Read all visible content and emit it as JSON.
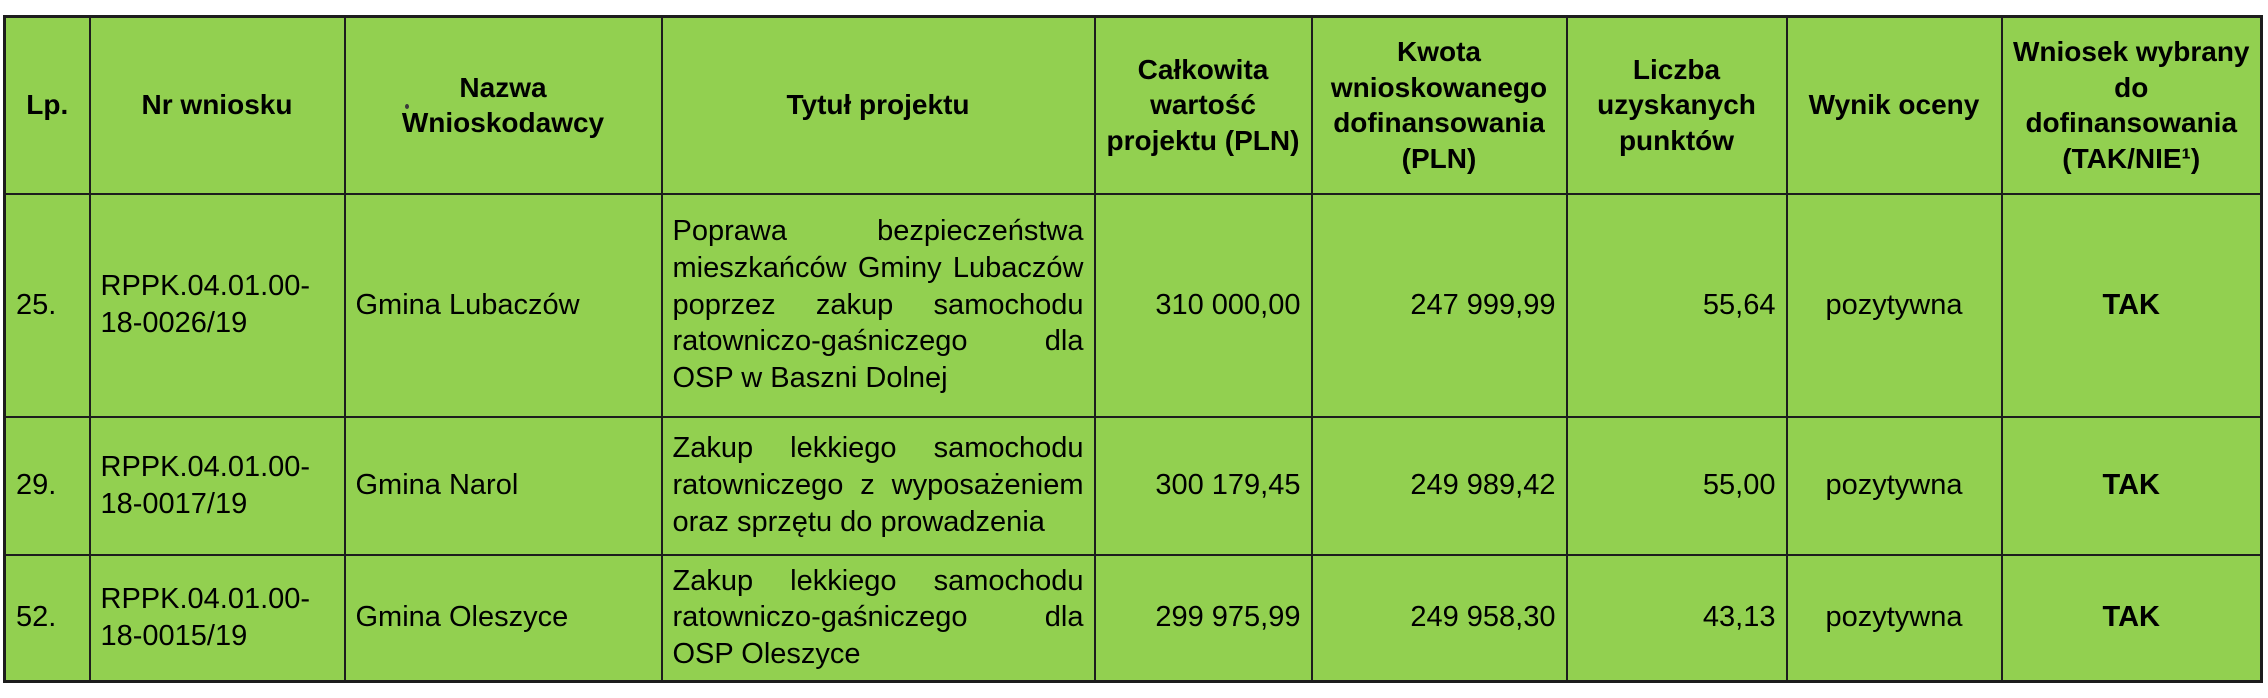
{
  "table": {
    "fill_color": "#92d050",
    "border_color": "#1d1d1d",
    "columns": [
      {
        "label": "Lp."
      },
      {
        "label": "Nr wniosku"
      },
      {
        "label": "Nazwa Wnioskodawcy"
      },
      {
        "label": "Tytuł projektu"
      },
      {
        "label": "Całkowita wartość projektu (PLN)"
      },
      {
        "label": "Kwota wnioskowanego dofinansowania (PLN)"
      },
      {
        "label": "Liczba uzyskanych punktów"
      },
      {
        "label": "Wynik oceny"
      },
      {
        "label": "Wniosek wybrany do dofinansowania (TAK/NIE¹)"
      }
    ],
    "rows": [
      {
        "lp": "25.",
        "nr": "RPPK.04.01.00-18-0026/19",
        "nazwa": "Gmina Lubaczów",
        "tytul": "Poprawa bezpieczeństwa mieszkańców Gminy Lubaczów poprzez zakup samochodu ratowniczo-gaśniczego dla OSP w Baszni Dolnej",
        "calkowita": "310 000,00",
        "kwota": "247 999,99",
        "liczba": "55,64",
        "wynik": "pozytywna",
        "wniosek": "TAK"
      },
      {
        "lp": "29.",
        "nr": "RPPK.04.01.00-18-0017/19",
        "nazwa": "Gmina Narol",
        "tytul": "Zakup lekkiego samochodu ratowniczego z wyposażeniem oraz sprzętu do prowadzenia",
        "calkowita": "300 179,45",
        "kwota": "249 989,42",
        "liczba": "55,00",
        "wynik": "pozytywna",
        "wniosek": "TAK"
      },
      {
        "lp": "52.",
        "nr": "RPPK.04.01.00-18-0015/19",
        "nazwa": "Gmina Oleszyce",
        "tytul": "Zakup lekkiego samochodu ratowniczo-gaśniczego dla OSP Oleszyce",
        "calkowita": "299 975,99",
        "kwota": "249 958,30",
        "liczba": "43,13",
        "wynik": "pozytywna",
        "wniosek": "TAK"
      }
    ]
  }
}
